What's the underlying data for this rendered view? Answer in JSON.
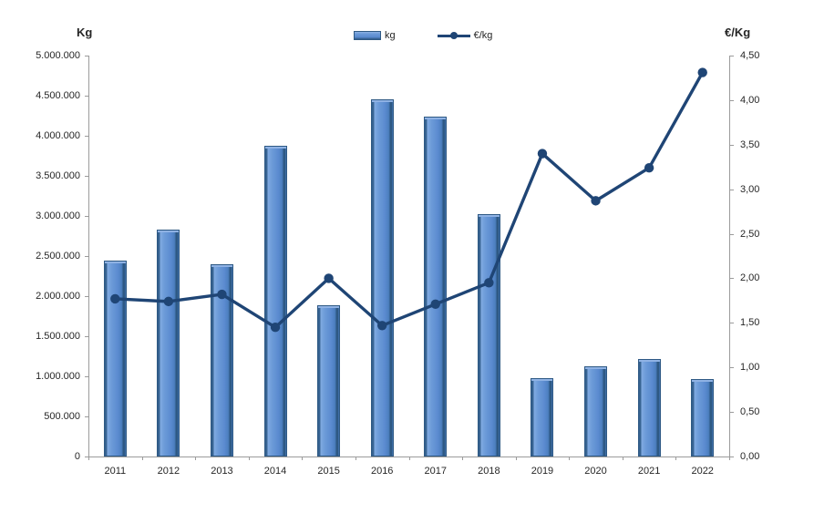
{
  "chart_data": {
    "type": "bar+line",
    "title": "",
    "categories": [
      "2011",
      "2012",
      "2013",
      "2014",
      "2015",
      "2016",
      "2017",
      "2018",
      "2019",
      "2020",
      "2021",
      "2022"
    ],
    "series": [
      {
        "name": "kg",
        "chart": "bar",
        "axis": "left",
        "color": "#5B8BD0",
        "values": [
          2440000,
          2830000,
          2400000,
          3880000,
          1890000,
          4450000,
          4240000,
          3020000,
          980000,
          1120000,
          1215000,
          965000
        ]
      },
      {
        "name": "€/kg",
        "chart": "line",
        "axis": "right",
        "color": "#1F4575",
        "values": [
          1.77,
          1.74,
          1.82,
          1.45,
          2.0,
          1.47,
          1.71,
          1.95,
          3.4,
          2.87,
          3.24,
          4.31
        ]
      }
    ],
    "left_axis": {
      "title": "Kg",
      "min": 0,
      "max": 5000000,
      "step": 500000,
      "tick_labels": [
        "0",
        "500.000",
        "1.000.000",
        "1.500.000",
        "2.000.000",
        "2.500.000",
        "3.000.000",
        "3.500.000",
        "4.000.000",
        "4.500.000",
        "5.000.000"
      ]
    },
    "right_axis": {
      "title": "€/Kg",
      "min": 0,
      "max": 4.5,
      "step": 0.5,
      "tick_labels": [
        "0,00",
        "0,50",
        "1,00",
        "1,50",
        "2,00",
        "2,50",
        "3,00",
        "3,50",
        "4,00",
        "4,50"
      ]
    },
    "x_axis": {
      "tick_labels": [
        "2011",
        "2012",
        "2013",
        "2014",
        "2015",
        "2016",
        "2017",
        "2018",
        "2019",
        "2020",
        "2021",
        "2022"
      ]
    },
    "legend": {
      "position": "top",
      "items": [
        "kg",
        "€/kg"
      ]
    },
    "grid": false,
    "colors": {
      "bar_fill": "#5B8BD0",
      "bar_edge": "#2E5984",
      "bar_highlight": "#8FB2E4",
      "line": "#1F4575",
      "axis": "#9B9B9B",
      "text": "#262626",
      "background": "#FFFFFF"
    }
  }
}
